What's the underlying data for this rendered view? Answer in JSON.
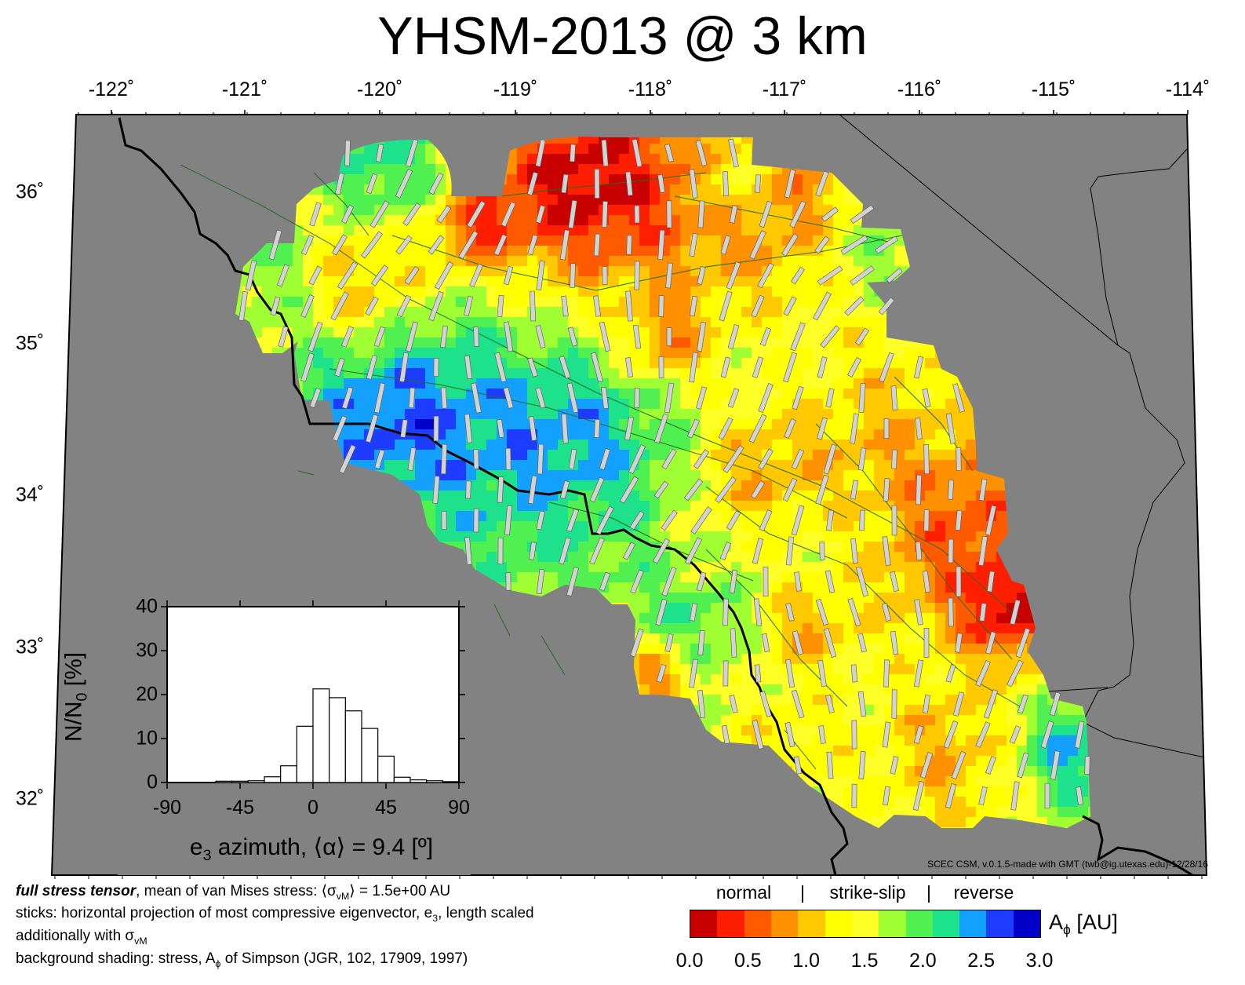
{
  "title": "YHSM-2013 @ 3 km",
  "lon_ticks": [
    "-122˚",
    "-121˚",
    "-120˚",
    "-119˚",
    "-118˚",
    "-117˚",
    "-116˚",
    "-115˚",
    "-114˚"
  ],
  "lat_ticks": [
    "36˚",
    "35˚",
    "34˚",
    "33˚",
    "32˚"
  ],
  "credit": "SCEC CSM, v.0.1.5-made with GMT (twb@ig.utexas.edu)-12/28/16",
  "colors": {
    "land": "#828282",
    "coastline": "#000000",
    "faults": "#1f6e1f",
    "sticks": "#d2d2d2"
  },
  "inset": {
    "ylabel_main": "N/N",
    "ylabel_sub": "0",
    "ylabel_unit": " [%]",
    "xlabel_main": "e",
    "xlabel_sub": "3",
    "xlabel_rest": " azimuth, ⟨α⟩ = 9.4 [º]",
    "y_ticks": [
      "40",
      "30",
      "20",
      "10",
      "0"
    ],
    "x_ticks": [
      "-90",
      "-45",
      "0",
      "45",
      "90"
    ]
  },
  "chart_data": {
    "type": "bar",
    "xlabel": "e3 azimuth, ⟨α⟩ = 9.4 [º]",
    "ylabel": "N/N0 [%]",
    "xlim": [
      -90,
      90
    ],
    "ylim": [
      0,
      40
    ],
    "bin_width": 10,
    "bin_centers": [
      -85,
      -75,
      -65,
      -55,
      -45,
      -35,
      -25,
      -15,
      -5,
      5,
      15,
      25,
      35,
      45,
      55,
      65,
      75,
      85
    ],
    "values": [
      0,
      0,
      0,
      0.3,
      0.3,
      0.4,
      1.3,
      3.8,
      12.8,
      21.3,
      19.3,
      16.3,
      12.3,
      6.0,
      1.2,
      0.6,
      0.4,
      0.2
    ]
  },
  "caption": {
    "line1_bold": "full stress tensor",
    "line1_a": ", mean of van Mises stress: ⟨σ",
    "line1_sub": "vM",
    "line1_b": "⟩ = 1.5e+00 AU",
    "line2_a": "sticks: horizontal projection of most compressive eigenvector, e",
    "line2_sub": "3",
    "line2_b": ", length scaled",
    "line3_a": "additionally with σ",
    "line3_sub": "vM",
    "line4_a": "background shading: stress, A",
    "line4_sub": "ϕ",
    "line4_b": " of Simpson (JGR, 102, 17909, 1997)"
  },
  "colorbar": {
    "head_normal": "normal",
    "head_sep1": "|",
    "head_strike": "strike-slip",
    "head_sep2": "|",
    "head_reverse": "reverse",
    "unit_main": "A",
    "unit_sub": "ϕ",
    "unit_rest": " [AU]",
    "ticks": [
      "0.0",
      "0.5",
      "1.0",
      "1.5",
      "2.0",
      "2.5",
      "3.0"
    ],
    "range": [
      0,
      3
    ],
    "colors": [
      "#c80000",
      "#ff1e00",
      "#ff5a00",
      "#ff9100",
      "#ffc800",
      "#ffff00",
      "#ffff28",
      "#a0ff32",
      "#50f050",
      "#1ee18c",
      "#14a0ff",
      "#1e3cff",
      "#0000c8"
    ]
  }
}
